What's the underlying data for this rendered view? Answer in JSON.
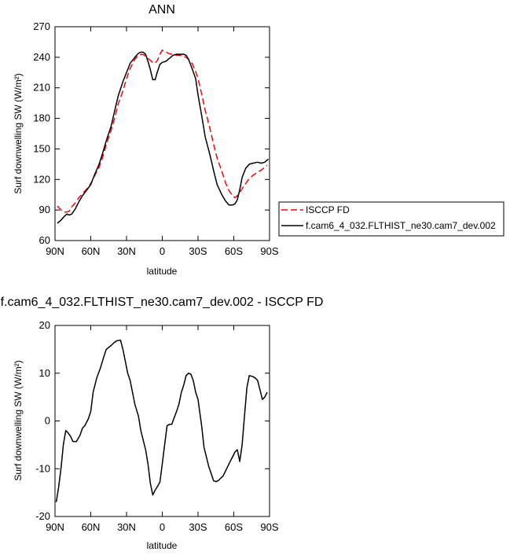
{
  "chart_data": [
    {
      "type": "line",
      "title": "ANN",
      "xlabel": "latitude",
      "ylabel": "Surf downwelling SW (W/m²)",
      "xlim": [
        90,
        -90
      ],
      "ylim": [
        60,
        270
      ],
      "x_ticks": [
        {
          "value": 90,
          "label": "90N"
        },
        {
          "value": 60,
          "label": "60N"
        },
        {
          "value": 30,
          "label": "30N"
        },
        {
          "value": 0,
          "label": "0"
        },
        {
          "value": -30,
          "label": "30S"
        },
        {
          "value": -60,
          "label": "60S"
        },
        {
          "value": -90,
          "label": "90S"
        }
      ],
      "y_ticks": [
        60,
        90,
        120,
        150,
        180,
        210,
        240,
        270
      ],
      "legend": "outside-right",
      "series": [
        {
          "name": "ISCCP FD",
          "color": "#ff0000",
          "dash": "dashed",
          "x": [
            88,
            85,
            82,
            80,
            78,
            76,
            73,
            70,
            67,
            63,
            60,
            57,
            53,
            50,
            47,
            43,
            40,
            37,
            33,
            30,
            27,
            23,
            20,
            17,
            15,
            13,
            10,
            8,
            6,
            4,
            2,
            0,
            -2,
            -5,
            -8,
            -12,
            -15,
            -18,
            -20,
            -22,
            -25,
            -28,
            -30,
            -33,
            -36,
            -40,
            -43,
            -46,
            -50,
            -53,
            -56,
            -59,
            -61,
            -63,
            -65,
            -67,
            -70,
            -73,
            -76,
            -80,
            -84,
            -88
          ],
          "y": [
            94,
            90,
            88,
            88,
            89,
            93,
            97,
            102,
            106,
            111,
            116,
            123,
            132,
            142,
            154,
            168,
            180,
            194,
            207,
            219,
            229,
            238,
            242,
            243,
            242,
            240,
            237,
            235,
            234,
            237,
            243,
            247,
            246,
            244,
            243,
            242,
            242,
            241,
            240,
            238,
            234,
            226,
            219,
            204,
            188,
            170,
            155,
            141,
            128,
            117,
            109,
            104,
            102,
            104,
            107,
            111,
            116,
            121,
            124,
            127,
            130,
            134
          ]
        },
        {
          "name": "f.cam6_4_032.FLTHIST_ne30.cam7_dev.002",
          "color": "#000000",
          "dash": "solid",
          "x": [
            88,
            85,
            82,
            80,
            78,
            76,
            73,
            70,
            67,
            63,
            60,
            57,
            53,
            50,
            47,
            43,
            40,
            37,
            33,
            30,
            27,
            23,
            20,
            18,
            16,
            14,
            12,
            10,
            8,
            6,
            4,
            2,
            0,
            -3,
            -6,
            -9,
            -12,
            -15,
            -18,
            -20,
            -22,
            -25,
            -28,
            -30,
            -33,
            -36,
            -40,
            -43,
            -46,
            -50,
            -53,
            -56,
            -59,
            -61,
            -63,
            -65,
            -67,
            -70,
            -73,
            -76,
            -80,
            -83,
            -86,
            -89
          ],
          "y": [
            77,
            80,
            84,
            86,
            85,
            86,
            91,
            98,
            104,
            110,
            115,
            124,
            135,
            146,
            158,
            172,
            187,
            202,
            216,
            225,
            234,
            240,
            244,
            245,
            245,
            243,
            236,
            228,
            218,
            218,
            226,
            233,
            235,
            236,
            239,
            242,
            243,
            243,
            243,
            242,
            238,
            229,
            219,
            203,
            183,
            162,
            144,
            129,
            115,
            105,
            99,
            95,
            95,
            96,
            100,
            110,
            122,
            131,
            135,
            136,
            137,
            136,
            137,
            140
          ]
        }
      ]
    },
    {
      "type": "line",
      "title": "f.cam6_4_032.FLTHIST_ne30.cam7_dev.002 - ISCCP FD",
      "xlabel": "latitude",
      "ylabel": "Surf downwelling SW (W/m²)",
      "xlim": [
        90,
        -90
      ],
      "ylim": [
        -20,
        20
      ],
      "x_ticks": [
        {
          "value": 90,
          "label": "90N"
        },
        {
          "value": 60,
          "label": "60N"
        },
        {
          "value": 30,
          "label": "30N"
        },
        {
          "value": 0,
          "label": "0"
        },
        {
          "value": -30,
          "label": "30S"
        },
        {
          "value": -60,
          "label": "60S"
        },
        {
          "value": -90,
          "label": "90S"
        }
      ],
      "y_ticks": [
        -20,
        -10,
        0,
        10,
        20
      ],
      "series": [
        {
          "name": "",
          "color": "#000000",
          "dash": "solid",
          "x": [
            89,
            87,
            85,
            83,
            81,
            79,
            77,
            75,
            72,
            69,
            67,
            65,
            62,
            60,
            58,
            55,
            52,
            49,
            47,
            45,
            43,
            40,
            38,
            35,
            33,
            31,
            29,
            27,
            25,
            23,
            20,
            18,
            16,
            14,
            12,
            10,
            8,
            6,
            4,
            2,
            0,
            -2,
            -4,
            -6,
            -8,
            -10,
            -12,
            -14,
            -16,
            -18,
            -20,
            -22,
            -24,
            -26,
            -28,
            -30,
            -33,
            -35,
            -37,
            -39,
            -41,
            -43,
            -45,
            -47,
            -49,
            -51,
            -53,
            -55,
            -57,
            -59,
            -61,
            -63,
            -65,
            -67,
            -69,
            -71,
            -73,
            -76,
            -78,
            -80,
            -82,
            -84,
            -86,
            -88
          ],
          "y": [
            -17,
            -14,
            -10,
            -5,
            -2,
            -2.5,
            -3.2,
            -4.3,
            -4.3,
            -3,
            -1.5,
            -1.0,
            0.5,
            2,
            6,
            9,
            11,
            13.5,
            15,
            15.4,
            15.8,
            16.5,
            16.8,
            16.9,
            15,
            12.5,
            10,
            8.5,
            6,
            3.5,
            1,
            -2,
            -4,
            -6,
            -9,
            -13,
            -15.5,
            -14.5,
            -13.7,
            -12.8,
            -9,
            -5,
            -1,
            -0.7,
            -0.7,
            0.7,
            2,
            3.5,
            6,
            7.5,
            9.5,
            10,
            9.8,
            8.5,
            6,
            4.5,
            -1,
            -5.5,
            -7.5,
            -9.5,
            -11,
            -12.5,
            -12.7,
            -12.5,
            -12,
            -11.5,
            -10.5,
            -9.5,
            -8.5,
            -7.5,
            -6.5,
            -6,
            -8.5,
            -5,
            1,
            7,
            9.5,
            9.3,
            9,
            8.5,
            6.5,
            4.5,
            5,
            6
          ]
        }
      ]
    }
  ]
}
